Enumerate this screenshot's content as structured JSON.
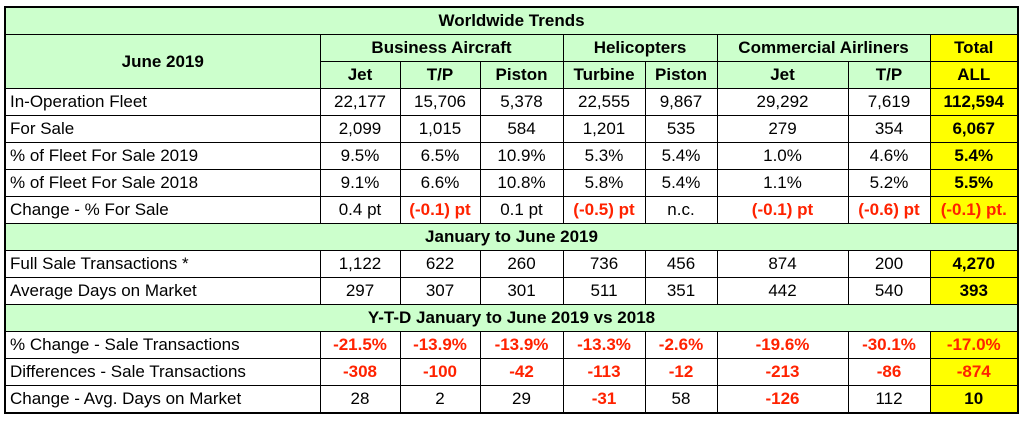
{
  "table": {
    "title": "Worldwide Trends",
    "header": {
      "corner": "June 2019",
      "groups": [
        "Business Aircraft",
        "Helicopters",
        "Commercial Airliners",
        "Total"
      ],
      "columns": [
        "Jet",
        "T/P",
        "Piston",
        "Turbine",
        "Piston",
        "Jet",
        "T/P",
        "ALL"
      ]
    },
    "sections": [
      {
        "rows": [
          {
            "label": "In-Operation Fleet",
            "cells": [
              "22,177",
              "15,706",
              "5,378",
              "22,555",
              "9,867",
              "29,292",
              "7,619",
              "112,594"
            ]
          },
          {
            "label": "For Sale",
            "cells": [
              "2,099",
              "1,015",
              "584",
              "1,201",
              "535",
              "279",
              "354",
              "6,067"
            ]
          },
          {
            "label": "% of Fleet For Sale 2019",
            "cells": [
              "9.5%",
              "6.5%",
              "10.9%",
              "5.3%",
              "5.4%",
              "1.0%",
              "4.6%",
              "5.4%"
            ]
          },
          {
            "label": "% of Fleet For Sale 2018",
            "cells": [
              "9.1%",
              "6.6%",
              "10.8%",
              "5.8%",
              "5.4%",
              "1.1%",
              "5.2%",
              "5.5%"
            ]
          },
          {
            "label": "Change - % For Sale",
            "cells": [
              "0.4 pt",
              "(-0.1) pt",
              "0.1 pt",
              "(-0.5) pt",
              "n.c.",
              "(-0.1) pt",
              "(-0.6) pt",
              "(-0.1) pt."
            ]
          }
        ]
      },
      {
        "heading": "January to June 2019",
        "rows": [
          {
            "label": "Full Sale Transactions *",
            "cells": [
              "1,122",
              "622",
              "260",
              "736",
              "456",
              "874",
              "200",
              "4,270"
            ]
          },
          {
            "label": "Average Days on Market",
            "cells": [
              "297",
              "307",
              "301",
              "511",
              "351",
              "442",
              "540",
              "393"
            ]
          }
        ]
      },
      {
        "heading": "Y-T-D January to June 2019 vs 2018",
        "rows": [
          {
            "label": "% Change  - Sale Transactions",
            "cells": [
              "-21.5%",
              "-13.9%",
              "-13.9%",
              "-13.3%",
              "-2.6%",
              "-19.6%",
              "-30.1%",
              "-17.0%"
            ]
          },
          {
            "label": "Differences - Sale Transactions",
            "cells": [
              "-308",
              "-100",
              "-42",
              "-113",
              "-12",
              "-213",
              "-86",
              "-874"
            ]
          },
          {
            "label": "Change -  Avg. Days on Market",
            "cells": [
              "28",
              "2",
              "29",
              "-31",
              "58",
              "-126",
              "112",
              "10"
            ]
          }
        ]
      }
    ]
  }
}
